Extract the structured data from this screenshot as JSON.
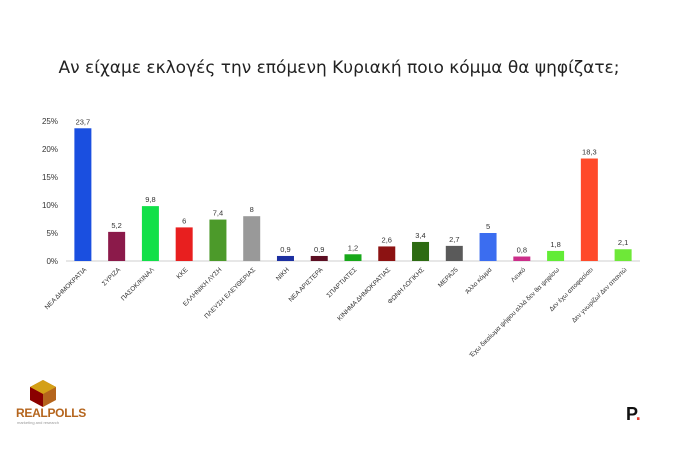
{
  "chart_data": {
    "type": "bar",
    "title": "Αν είχαμε εκλογές την επόμενη Κυριακή ποιο κόμμα θα ψηφίζατε;",
    "categories": [
      "ΝΕΑ ΔΗΜΟΚΡΑΤΙΑ",
      "ΣΥΡΙΖΑ",
      "ΠΑΣΟΚ/ΚΙΝΑΛ",
      "ΚΚΕ",
      "ΕΛΛΗΝΙΚΗ ΛΥΣΗ",
      "ΠΛΕΥΣΗ ΕΛΕΥΘΕΡΙΑΣ",
      "ΝΙΚΗ",
      "ΝΕΑ ΑΡΙΣΤΕΡΑ",
      "ΣΠΑΡΤΙΑΤΕΣ",
      "ΚΙΝΗΜΑ ΔΗΜΟΚΡΑΤΙΑΣ",
      "ΦΩΝΗ ΛΟΓΙΚΗΣ",
      "ΜΕΡΑ25",
      "Άλλο κόμμα",
      "Λευκό",
      "Έχω δικαίωμα ψήφου αλλά δεν θα ψηφίσω",
      "Δεν έχω αποφασίσει",
      "Δεν γνωρίζω/ Δεν απαντώ"
    ],
    "values": [
      23.7,
      5.2,
      9.8,
      6,
      7.4,
      8,
      0.9,
      0.9,
      1.2,
      2.6,
      3.4,
      2.7,
      5,
      0.8,
      1.8,
      18.3,
      2.1
    ],
    "value_labels": [
      "23,7",
      "5,2",
      "9,8",
      "6",
      "7,4",
      "8",
      "0,9",
      "0,9",
      "1,2",
      "2,6",
      "3,4",
      "2,7",
      "5",
      "0,8",
      "1,8",
      "18,3",
      "2,1"
    ],
    "colors": [
      "#1a4fe0",
      "#8b1a4a",
      "#11e048",
      "#e81f1f",
      "#4c9a2a",
      "#999999",
      "#1c2fa0",
      "#5c0e22",
      "#18a81a",
      "#8c1212",
      "#2d6b12",
      "#5a5a5a",
      "#3b6df0",
      "#cc2e8a",
      "#62ec36",
      "#ff4a2a",
      "#6ee838"
    ],
    "yticks": [
      "0%",
      "5%",
      "10%",
      "15%",
      "20%",
      "25%"
    ],
    "ylim": [
      0,
      25
    ],
    "grid": false
  },
  "branding": {
    "realpolls_logo": "REALPOLLS",
    "realpolls_tagline": "marketing and research",
    "publisher_logo": "P",
    "publisher_dot": "."
  }
}
